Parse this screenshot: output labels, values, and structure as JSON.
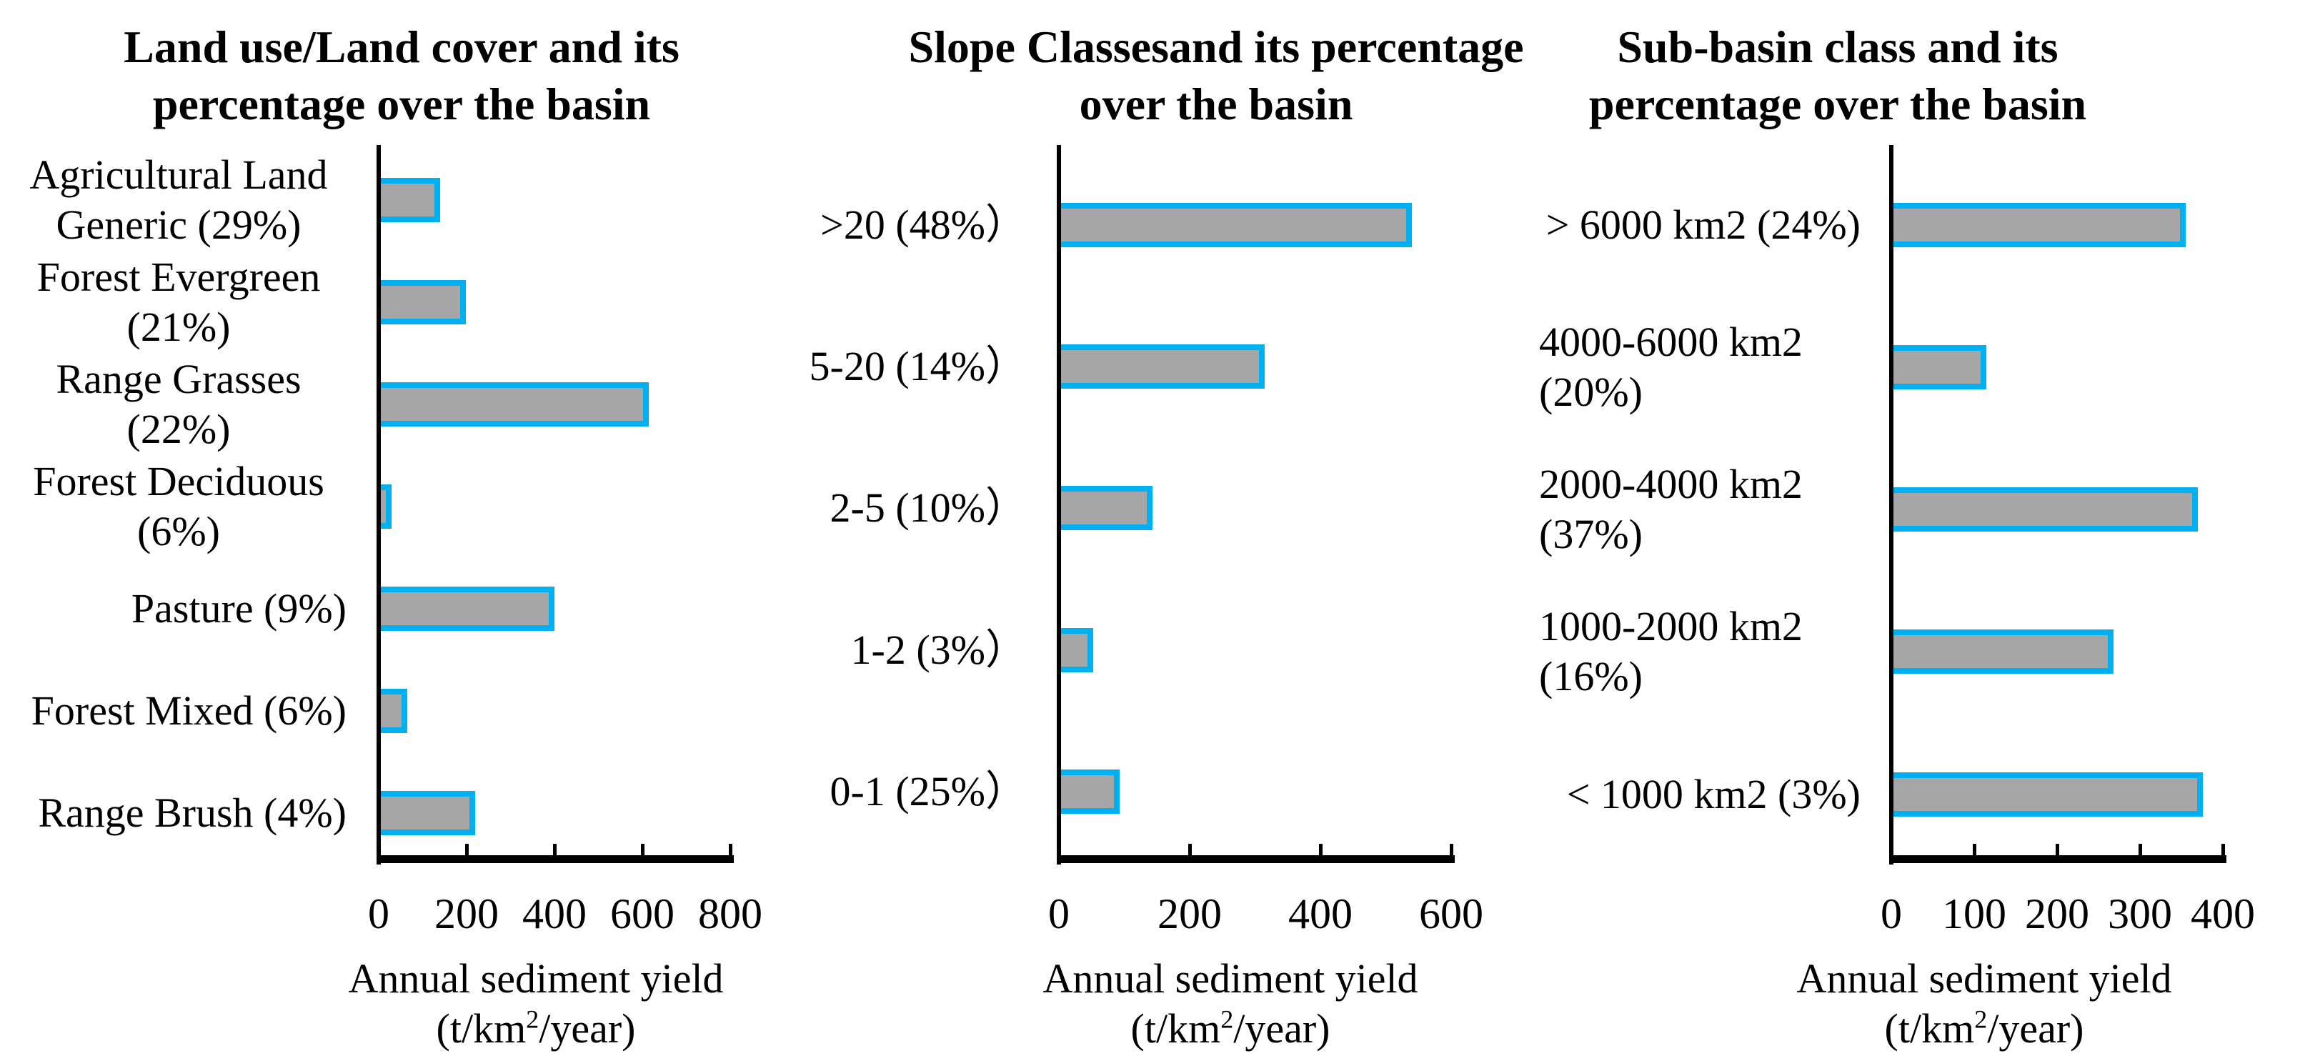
{
  "figure": {
    "background": "#ffffff"
  },
  "colors": {
    "bar_fill": "#a6a6a6",
    "bar_border": "#00b0f0",
    "axis": "#000000",
    "text": "#000000"
  },
  "axis_label": {
    "line1": "Annual sediment yield",
    "unit_prefix": "(t/km",
    "unit_sup": "2",
    "unit_suffix": "/year)"
  },
  "chart_data": [
    {
      "type": "bar",
      "orientation": "horizontal",
      "title": "Land use/Land cover and its percentage over the basin",
      "categories": [
        "Agricultural Land Generic (29%)",
        "Forest Evergreen (21%)",
        "Range Grasses (22%)",
        "Forest Deciduous (6%)",
        "Pasture (9%)",
        "Forest Mixed (6%)",
        "Range Brush (4%)"
      ],
      "values": [
        140,
        198,
        615,
        30,
        400,
        65,
        220
      ],
      "xlabel": "Annual sediment yield (t/km2/year)",
      "xlim": [
        0,
        800
      ],
      "xticks": [
        0,
        200,
        400,
        600,
        800
      ],
      "grid": false,
      "legend": false
    },
    {
      "type": "bar",
      "orientation": "horizontal",
      "title": "Slope Classesand its percentage over the basin",
      "categories": [
        ">20 (48%）",
        "5-20 (14%）",
        "2-5 (10%）",
        "1-2 (3%）",
        "0-1 (25%）"
      ],
      "values": [
        540,
        315,
        143,
        53,
        93
      ],
      "xlabel": "Annual sediment yield (t/km2/year)",
      "xlim": [
        0,
        600
      ],
      "xticks": [
        0,
        200,
        400,
        600
      ],
      "grid": false,
      "legend": false
    },
    {
      "type": "bar",
      "orientation": "horizontal",
      "title": "Sub-basin class and its percentage over the basin",
      "categories": [
        "> 6000 km2 (24%)",
        "4000-6000 km2 (20%)",
        "2000-4000 km2 (37%)",
        "1000-2000 km2 (16%)",
        "< 1000 km2 (3%)"
      ],
      "values": [
        355,
        115,
        370,
        268,
        376
      ],
      "xlabel": "Annual sediment yield (t/km2/year)",
      "xlim": [
        0,
        400
      ],
      "xticks": [
        0,
        100,
        200,
        300,
        400
      ],
      "grid": false,
      "legend": false
    }
  ]
}
